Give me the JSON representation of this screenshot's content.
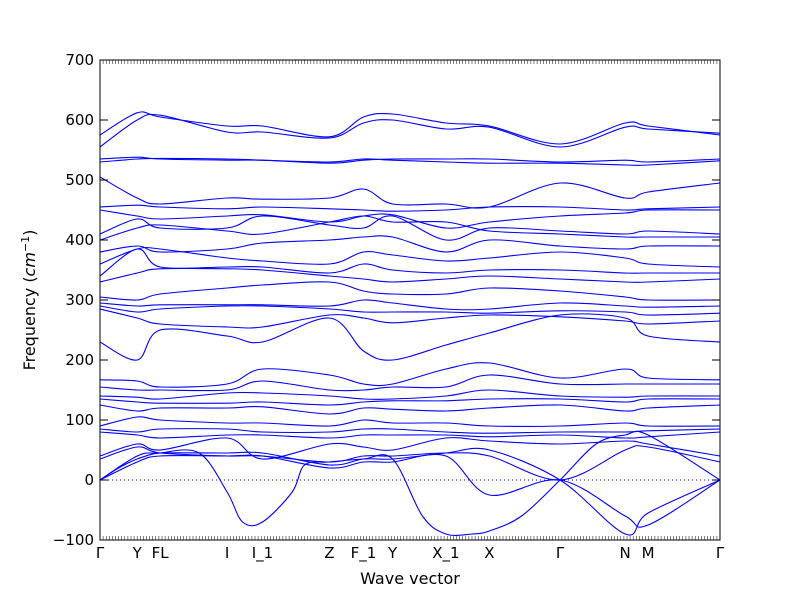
{
  "chart_data": {
    "type": "line",
    "xlabel": "Wave vector",
    "ylabel_text": "Frequency (",
    "ylabel_unit_base": "cm",
    "ylabel_unit_exp": "−1",
    "ylabel_close": ")",
    "ylim": [
      -100,
      700
    ],
    "y_ticks": [
      -100,
      0,
      100,
      200,
      300,
      400,
      500,
      600,
      700
    ],
    "xlim": [
      0,
      1
    ],
    "x_ticks": [
      {
        "label": "Γ",
        "x": 0.0
      },
      {
        "label": "Y",
        "x": 0.06
      },
      {
        "label": "FL",
        "x": 0.097
      },
      {
        "label": "I",
        "x": 0.205
      },
      {
        "label": "I_1",
        "x": 0.262
      },
      {
        "label": "Z",
        "x": 0.37
      },
      {
        "label": "F_1",
        "x": 0.425
      },
      {
        "label": "Y",
        "x": 0.472
      },
      {
        "label": "X_1",
        "x": 0.558
      },
      {
        "label": "X",
        "x": 0.628
      },
      {
        "label": "Γ",
        "x": 0.742
      },
      {
        "label": "N",
        "x": 0.847
      },
      {
        "label": "M",
        "x": 0.884
      },
      {
        "label": "Γ",
        "x": 1.0
      }
    ],
    "zero_line": 0,
    "line_color": "#0000ff",
    "zero_line_color": "#0000ff",
    "series": [
      {
        "x": [
          0,
          0.06,
          0.097,
          0.205,
          0.262,
          0.37,
          0.425,
          0.472,
          0.558,
          0.628,
          0.742,
          0.847,
          0.884,
          1.0
        ],
        "y": [
          575,
          612,
          605,
          590,
          590,
          572,
          605,
          610,
          595,
          590,
          560,
          595,
          590,
          575
        ]
      },
      {
        "x": [
          0,
          0.06,
          0.097,
          0.205,
          0.262,
          0.37,
          0.425,
          0.472,
          0.558,
          0.628,
          0.742,
          0.847,
          0.884,
          1.0
        ],
        "y": [
          555,
          600,
          608,
          580,
          580,
          570,
          595,
          600,
          585,
          588,
          555,
          588,
          585,
          578
        ]
      },
      {
        "x": [
          0,
          0.06,
          0.097,
          0.205,
          0.262,
          0.37,
          0.425,
          0.472,
          0.558,
          0.628,
          0.742,
          0.847,
          0.884,
          1.0
        ],
        "y": [
          535,
          538,
          535,
          533,
          533,
          528,
          533,
          535,
          535,
          535,
          530,
          533,
          530,
          535
        ]
      },
      {
        "x": [
          0,
          0.06,
          0.097,
          0.205,
          0.262,
          0.37,
          0.425,
          0.472,
          0.558,
          0.628,
          0.742,
          0.847,
          0.884,
          1.0
        ],
        "y": [
          530,
          535,
          536,
          535,
          533,
          530,
          535,
          533,
          530,
          528,
          528,
          525,
          525,
          532
        ]
      },
      {
        "x": [
          0,
          0.06,
          0.097,
          0.205,
          0.262,
          0.37,
          0.425,
          0.472,
          0.558,
          0.628,
          0.742,
          0.847,
          0.884,
          1.0
        ],
        "y": [
          505,
          470,
          460,
          470,
          468,
          470,
          485,
          460,
          460,
          455,
          495,
          470,
          480,
          495
        ]
      },
      {
        "x": [
          0,
          0.06,
          0.097,
          0.205,
          0.262,
          0.37,
          0.425,
          0.472,
          0.558,
          0.628,
          0.742,
          0.847,
          0.884,
          1.0
        ],
        "y": [
          455,
          458,
          455,
          452,
          455,
          452,
          450,
          448,
          450,
          455,
          455,
          450,
          452,
          455
        ]
      },
      {
        "x": [
          0,
          0.06,
          0.097,
          0.205,
          0.262,
          0.37,
          0.425,
          0.472,
          0.558,
          0.628,
          0.742,
          0.847,
          0.884,
          1.0
        ],
        "y": [
          450,
          440,
          435,
          440,
          442,
          430,
          440,
          442,
          420,
          430,
          440,
          445,
          450,
          450
        ]
      },
      {
        "x": [
          0,
          0.06,
          0.097,
          0.205,
          0.262,
          0.37,
          0.425,
          0.472,
          0.558,
          0.628,
          0.742,
          0.847,
          0.884,
          1.0
        ],
        "y": [
          410,
          435,
          420,
          420,
          440,
          425,
          420,
          440,
          400,
          420,
          415,
          410,
          415,
          410
        ]
      },
      {
        "x": [
          0,
          0.06,
          0.097,
          0.205,
          0.262,
          0.37,
          0.425,
          0.472,
          0.558,
          0.628,
          0.742,
          0.847,
          0.884,
          1.0
        ],
        "y": [
          400,
          420,
          425,
          415,
          410,
          430,
          440,
          430,
          430,
          415,
          410,
          405,
          405,
          405
        ]
      },
      {
        "x": [
          0,
          0.06,
          0.097,
          0.205,
          0.262,
          0.37,
          0.425,
          0.472,
          0.558,
          0.628,
          0.742,
          0.847,
          0.884,
          1.0
        ],
        "y": [
          380,
          390,
          380,
          385,
          395,
          400,
          405,
          405,
          380,
          400,
          390,
          385,
          390,
          390
        ]
      },
      {
        "x": [
          0,
          0.06,
          0.097,
          0.205,
          0.262,
          0.37,
          0.425,
          0.472,
          0.558,
          0.628,
          0.742,
          0.847,
          0.884,
          1.0
        ],
        "y": [
          360,
          385,
          385,
          370,
          365,
          360,
          380,
          375,
          365,
          370,
          380,
          370,
          360,
          355
        ]
      },
      {
        "x": [
          0,
          0.06,
          0.097,
          0.205,
          0.262,
          0.37,
          0.425,
          0.472,
          0.558,
          0.628,
          0.742,
          0.847,
          0.884,
          1.0
        ],
        "y": [
          340,
          385,
          355,
          355,
          355,
          345,
          360,
          350,
          345,
          350,
          350,
          345,
          345,
          345
        ]
      },
      {
        "x": [
          0,
          0.06,
          0.097,
          0.205,
          0.262,
          0.37,
          0.425,
          0.472,
          0.558,
          0.628,
          0.742,
          0.847,
          0.884,
          1.0
        ],
        "y": [
          330,
          345,
          352,
          352,
          350,
          340,
          335,
          330,
          335,
          340,
          335,
          330,
          330,
          335
        ]
      },
      {
        "x": [
          0,
          0.06,
          0.097,
          0.205,
          0.262,
          0.37,
          0.425,
          0.472,
          0.558,
          0.628,
          0.742,
          0.847,
          0.884,
          1.0
        ],
        "y": [
          305,
          300,
          310,
          320,
          325,
          330,
          315,
          310,
          310,
          320,
          315,
          305,
          300,
          300
        ]
      },
      {
        "x": [
          0,
          0.06,
          0.097,
          0.205,
          0.262,
          0.37,
          0.425,
          0.472,
          0.558,
          0.628,
          0.742,
          0.847,
          0.884,
          1.0
        ],
        "y": [
          295,
          290,
          292,
          292,
          292,
          290,
          300,
          295,
          285,
          285,
          295,
          290,
          288,
          290
        ]
      },
      {
        "x": [
          0,
          0.06,
          0.097,
          0.205,
          0.262,
          0.37,
          0.425,
          0.472,
          0.558,
          0.628,
          0.742,
          0.847,
          0.884,
          1.0
        ],
        "y": [
          290,
          280,
          285,
          290,
          290,
          285,
          280,
          280,
          280,
          278,
          282,
          280,
          275,
          278
        ]
      },
      {
        "x": [
          0,
          0.06,
          0.097,
          0.205,
          0.262,
          0.37,
          0.425,
          0.472,
          0.558,
          0.628,
          0.742,
          0.847,
          0.884,
          1.0
        ],
        "y": [
          285,
          270,
          260,
          255,
          255,
          275,
          270,
          262,
          270,
          275,
          272,
          265,
          260,
          265
        ]
      },
      {
        "x": [
          0,
          0.06,
          0.097,
          0.205,
          0.262,
          0.37,
          0.425,
          0.472,
          0.558,
          0.628,
          0.742,
          0.847,
          0.884,
          1.0
        ],
        "y": [
          230,
          200,
          250,
          240,
          230,
          270,
          215,
          200,
          225,
          245,
          275,
          270,
          240,
          230
        ]
      },
      {
        "x": [
          0,
          0.06,
          0.097,
          0.205,
          0.262,
          0.37,
          0.425,
          0.472,
          0.558,
          0.628,
          0.742,
          0.847,
          0.884,
          1.0
        ],
        "y": [
          167,
          165,
          155,
          160,
          185,
          175,
          160,
          160,
          185,
          195,
          170,
          185,
          170,
          167
        ]
      },
      {
        "x": [
          0,
          0.06,
          0.097,
          0.205,
          0.262,
          0.37,
          0.425,
          0.472,
          0.558,
          0.628,
          0.742,
          0.847,
          0.884,
          1.0
        ],
        "y": [
          155,
          150,
          150,
          150,
          165,
          150,
          150,
          155,
          155,
          175,
          160,
          160,
          160,
          160
        ]
      },
      {
        "x": [
          0,
          0.06,
          0.097,
          0.205,
          0.262,
          0.37,
          0.425,
          0.472,
          0.558,
          0.628,
          0.742,
          0.847,
          0.884,
          1.0
        ],
        "y": [
          140,
          138,
          135,
          145,
          145,
          140,
          135,
          135,
          140,
          150,
          140,
          138,
          140,
          140
        ]
      },
      {
        "x": [
          0,
          0.06,
          0.097,
          0.205,
          0.262,
          0.37,
          0.425,
          0.472,
          0.558,
          0.628,
          0.742,
          0.847,
          0.884,
          1.0
        ],
        "y": [
          135,
          130,
          128,
          128,
          130,
          125,
          130,
          132,
          132,
          135,
          135,
          130,
          135,
          135
        ]
      },
      {
        "x": [
          0,
          0.06,
          0.097,
          0.205,
          0.262,
          0.37,
          0.425,
          0.472,
          0.558,
          0.628,
          0.742,
          0.847,
          0.884,
          1.0
        ],
        "y": [
          125,
          115,
          120,
          120,
          122,
          110,
          120,
          118,
          115,
          120,
          125,
          115,
          120,
          125
        ]
      },
      {
        "x": [
          0,
          0.06,
          0.097,
          0.205,
          0.262,
          0.37,
          0.425,
          0.472,
          0.558,
          0.628,
          0.742,
          0.847,
          0.884,
          1.0
        ],
        "y": [
          90,
          105,
          100,
          95,
          95,
          90,
          100,
          95,
          95,
          90,
          90,
          95,
          90,
          90
        ]
      },
      {
        "x": [
          0,
          0.06,
          0.097,
          0.205,
          0.262,
          0.37,
          0.425,
          0.472,
          0.558,
          0.628,
          0.742,
          0.847,
          0.884,
          1.0
        ],
        "y": [
          85,
          80,
          85,
          85,
          80,
          80,
          85,
          85,
          80,
          78,
          80,
          80,
          82,
          85
        ]
      },
      {
        "x": [
          0,
          0.06,
          0.097,
          0.205,
          0.262,
          0.37,
          0.425,
          0.472,
          0.558,
          0.628,
          0.742,
          0.847,
          0.884,
          1.0
        ],
        "y": [
          80,
          75,
          70,
          75,
          75,
          70,
          75,
          75,
          75,
          72,
          75,
          70,
          72,
          80
        ]
      },
      {
        "x": [
          0,
          0.06,
          0.097,
          0.205,
          0.262,
          0.37,
          0.425,
          0.472,
          0.558,
          0.628,
          0.742,
          0.847,
          0.884,
          1.0
        ],
        "y": [
          40,
          60,
          50,
          70,
          35,
          60,
          55,
          50,
          70,
          65,
          60,
          65,
          60,
          40
        ]
      },
      {
        "x": [
          0,
          0.06,
          0.097,
          0.205,
          0.262,
          0.37,
          0.425,
          0.472,
          0.558,
          0.628,
          0.742,
          0.847,
          0.884,
          1.0
        ],
        "y": [
          35,
          55,
          45,
          40,
          40,
          30,
          40,
          40,
          45,
          40,
          0,
          50,
          55,
          30
        ]
      },
      {
        "x": [
          0,
          0.03,
          0.06,
          0.097,
          0.16,
          0.205,
          0.23,
          0.262,
          0.31,
          0.33,
          0.37,
          0.425,
          0.472,
          0.52,
          0.558,
          0.6,
          0.628,
          0.68,
          0.742,
          0.8,
          0.847,
          0.884,
          1.0
        ],
        "y": [
          0,
          20,
          35,
          45,
          45,
          -20,
          -70,
          -70,
          -20,
          25,
          30,
          35,
          35,
          -60,
          -90,
          -90,
          -85,
          -60,
          0,
          60,
          75,
          75,
          0
        ]
      },
      {
        "x": [
          0,
          0.06,
          0.097,
          0.205,
          0.262,
          0.37,
          0.425,
          0.472,
          0.558,
          0.628,
          0.742,
          0.847,
          0.884,
          1.0
        ],
        "y": [
          0,
          40,
          45,
          45,
          45,
          25,
          35,
          35,
          45,
          50,
          0,
          -90,
          -55,
          0
        ]
      },
      {
        "x": [
          0,
          0.06,
          0.097,
          0.205,
          0.262,
          0.37,
          0.425,
          0.472,
          0.558,
          0.628,
          0.742,
          0.847,
          0.884,
          1.0
        ],
        "y": [
          0,
          30,
          40,
          40,
          40,
          20,
          30,
          30,
          40,
          -25,
          0,
          -60,
          -75,
          0
        ]
      }
    ]
  }
}
